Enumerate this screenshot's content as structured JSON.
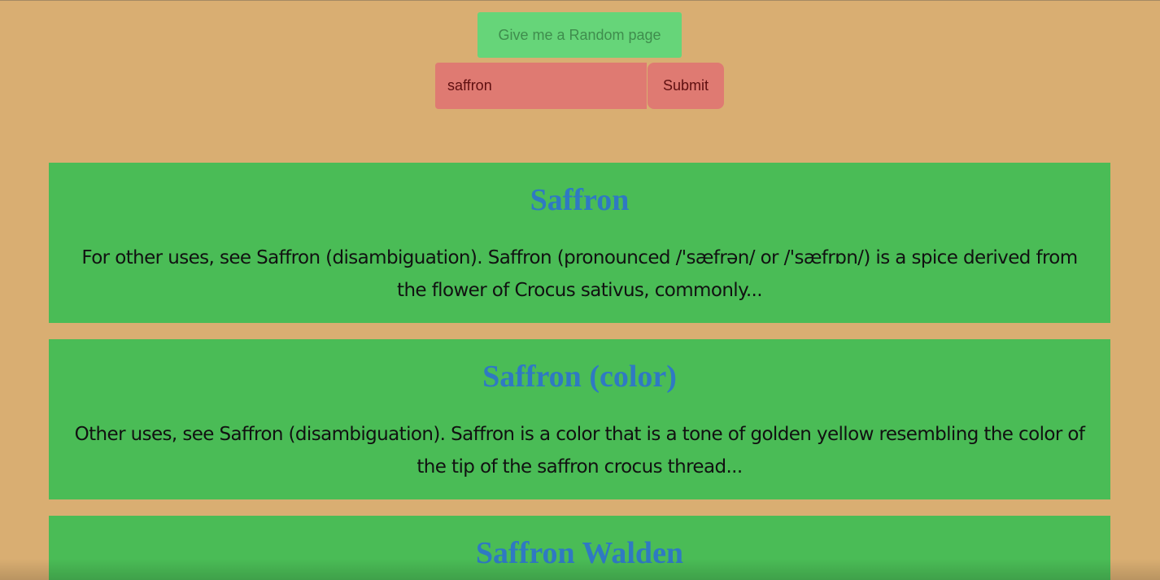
{
  "controls": {
    "random_label": "Give me a Random page",
    "search_value": "saffron",
    "submit_label": "Submit"
  },
  "results": [
    {
      "title": "Saffron",
      "snippet": "For other uses, see Saffron (disambiguation). Saffron (pronounced /'sæfrən/ or /'sæfrɒn/) is a spice derived from the flower of Crocus sativus, commonly..."
    },
    {
      "title": "Saffron (color)",
      "snippet": "Other uses, see Saffron (disambiguation). Saffron is a color that is a tone of golden yellow resembling the color of the tip of the saffron crocus thread..."
    },
    {
      "title": "Saffron Walden"
    }
  ],
  "colors": {
    "background": "#d9ae72",
    "random_button": "#66d579",
    "search_controls": "#df7a72",
    "result_card": "#4abc56",
    "result_title": "#2f79c3"
  }
}
